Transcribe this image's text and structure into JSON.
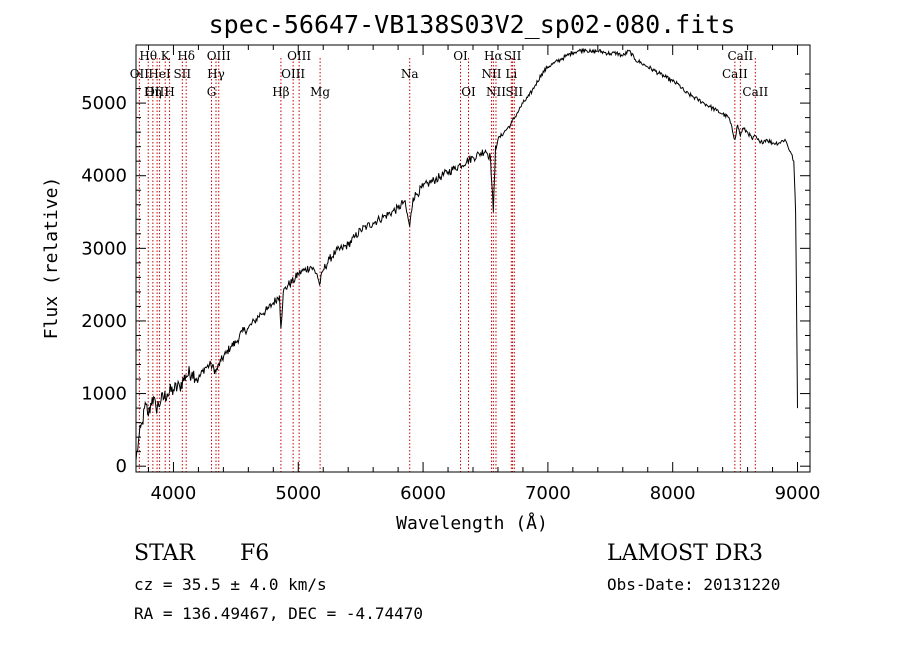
{
  "chart_data": {
    "type": "line",
    "title": "spec-56647-VB138S03V2_sp02-080.fits",
    "xlabel": "Wavelength (Å)",
    "ylabel": "Flux (relative)",
    "xlim": [
      3700,
      9100
    ],
    "ylim": [
      -80,
      5800
    ],
    "xticks": [
      4000,
      5000,
      6000,
      7000,
      8000,
      9000
    ],
    "yticks": [
      0,
      1000,
      2000,
      3000,
      4000,
      5000
    ],
    "series": [
      {
        "name": "flux",
        "x": [
          3700,
          3720,
          3750,
          3780,
          3800,
          3830,
          3860,
          3900,
          3950,
          4000,
          4050,
          4100,
          4150,
          4200,
          4250,
          4300,
          4340,
          4380,
          4420,
          4460,
          4500,
          4550,
          4600,
          4650,
          4700,
          4750,
          4800,
          4850,
          4861,
          4880,
          4920,
          4960,
          5000,
          5050,
          5100,
          5150,
          5170,
          5200,
          5250,
          5300,
          5350,
          5400,
          5450,
          5500,
          5550,
          5600,
          5650,
          5700,
          5750,
          5800,
          5850,
          5893,
          5920,
          5950,
          6000,
          6050,
          6100,
          6150,
          6200,
          6250,
          6300,
          6350,
          6400,
          6450,
          6500,
          6540,
          6563,
          6580,
          6600,
          6650,
          6700,
          6750,
          6800,
          6850,
          6900,
          6950,
          7000,
          7050,
          7100,
          7150,
          7200,
          7250,
          7300,
          7350,
          7400,
          7450,
          7500,
          7550,
          7600,
          7650,
          7700,
          7750,
          7800,
          7850,
          7900,
          7950,
          8000,
          8050,
          8100,
          8150,
          8200,
          8250,
          8300,
          8350,
          8400,
          8450,
          8498,
          8520,
          8542,
          8560,
          8600,
          8640,
          8662,
          8680,
          8700,
          8750,
          8800,
          8850,
          8900,
          8950,
          8970,
          8985,
          9000
        ],
        "y": [
          80,
          350,
          600,
          850,
          700,
          950,
          800,
          900,
          1000,
          1050,
          1100,
          1250,
          1300,
          1200,
          1350,
          1400,
          1300,
          1450,
          1550,
          1650,
          1700,
          1850,
          1900,
          2000,
          2100,
          2150,
          2250,
          2350,
          1900,
          2400,
          2500,
          2550,
          2650,
          2700,
          2750,
          2650,
          2500,
          2700,
          2850,
          2950,
          3000,
          3050,
          3150,
          3250,
          3300,
          3350,
          3400,
          3450,
          3500,
          3550,
          3650,
          3300,
          3700,
          3750,
          3850,
          3900,
          3950,
          4000,
          4050,
          4100,
          4150,
          4200,
          4250,
          4300,
          4350,
          4250,
          3500,
          4400,
          4500,
          4600,
          4700,
          4850,
          5000,
          5100,
          5250,
          5400,
          5500,
          5550,
          5600,
          5650,
          5700,
          5720,
          5740,
          5700,
          5720,
          5700,
          5680,
          5690,
          5650,
          5720,
          5600,
          5550,
          5500,
          5450,
          5400,
          5350,
          5300,
          5250,
          5150,
          5100,
          5050,
          5000,
          4950,
          4900,
          4850,
          4800,
          4500,
          4700,
          4550,
          4650,
          4600,
          4500,
          4550,
          4500,
          4450,
          4500,
          4450,
          4450,
          4500,
          4300,
          4200,
          3500,
          800
        ]
      }
    ],
    "lines": [
      {
        "name": "Hθ",
        "x": 3798,
        "row": 1
      },
      {
        "name": "OII",
        "x": 3727,
        "row": 2
      },
      {
        "name": "OIII",
        "x": 3869,
        "row": 3
      },
      {
        "name": "K",
        "x": 3934,
        "row": 1
      },
      {
        "name": "HeI",
        "x": 3889,
        "row": 2
      },
      {
        "name": "Hη",
        "x": 3835,
        "row": 3
      },
      {
        "name": "SII",
        "x": 4071,
        "row": 2
      },
      {
        "name": "H",
        "x": 3969,
        "row": 3
      },
      {
        "name": "Hδ",
        "x": 4102,
        "row": 1
      },
      {
        "name": "OIII",
        "x": 4363,
        "row": 1
      },
      {
        "name": "Hγ",
        "x": 4341,
        "row": 2
      },
      {
        "name": "G",
        "x": 4305,
        "row": 3
      },
      {
        "name": "Hβ",
        "x": 4861,
        "row": 3
      },
      {
        "name": "OIII",
        "x": 5007,
        "row": 1
      },
      {
        "name": "OIII",
        "x": 4959,
        "row": 2
      },
      {
        "name": "Mg",
        "x": 5175,
        "row": 3
      },
      {
        "name": "Na",
        "x": 5893,
        "row": 2
      },
      {
        "name": "OI",
        "x": 6300,
        "row": 1
      },
      {
        "name": "OI",
        "x": 6364,
        "row": 3
      },
      {
        "name": "Hα",
        "x": 6563,
        "row": 1
      },
      {
        "name": "NII",
        "x": 6548,
        "row": 2
      },
      {
        "name": "NII",
        "x": 6584,
        "row": 3
      },
      {
        "name": "SII",
        "x": 6717,
        "row": 1
      },
      {
        "name": "Li",
        "x": 6707,
        "row": 2
      },
      {
        "name": "SII",
        "x": 6731,
        "row": 3
      },
      {
        "name": "CaII",
        "x": 8542,
        "row": 1
      },
      {
        "name": "CaII",
        "x": 8498,
        "row": 2
      },
      {
        "name": "CaII",
        "x": 8662,
        "row": 3
      }
    ]
  },
  "info": {
    "object_class": "STAR",
    "subclass": "F6",
    "survey": "LAMOST DR3",
    "redshift": "cz = 35.5 ± 4.0 km/s",
    "obs_date": "Obs-Date: 20131220",
    "coords": "RA = 136.49467, DEC =  -4.74470"
  },
  "colors": {
    "line_marker": "#cc0000",
    "spectrum": "#000000"
  }
}
